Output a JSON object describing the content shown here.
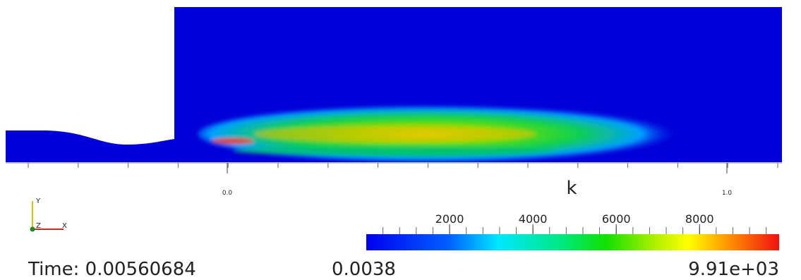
{
  "time_label": "Time: 0.00560684",
  "ruler": {
    "ticks": [
      {
        "value": 0,
        "label": "0.0"
      },
      {
        "value": 1,
        "label": "1.0"
      }
    ]
  },
  "axes": {
    "x": "X",
    "y": "Y",
    "z": "Z"
  },
  "colorbar": {
    "title": "k",
    "range": [
      {
        "value": 0.0038,
        "label": "0.0038"
      },
      {
        "value": 9910,
        "label": "9.91e+03"
      }
    ],
    "ticks": [
      2000,
      4000,
      6000,
      8000
    ]
  }
}
